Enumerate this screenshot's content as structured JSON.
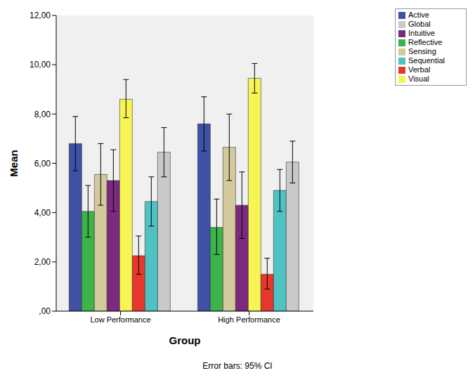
{
  "chart_data": {
    "type": "bar",
    "xlabel": "Group",
    "ylabel": "Mean",
    "annotation": "Error bars: 95% CI",
    "categories": [
      "Low Performance",
      "High Performance"
    ],
    "series": [
      {
        "name": "Active",
        "color": "#3f51a6",
        "values": [
          6.8,
          7.6
        ],
        "ci": [
          [
            5.7,
            7.9
          ],
          [
            6.5,
            8.7
          ]
        ]
      },
      {
        "name": "Reflective",
        "color": "#3cb44a",
        "values": [
          4.05,
          3.4
        ],
        "ci": [
          [
            3.0,
            5.1
          ],
          [
            2.3,
            4.55
          ]
        ]
      },
      {
        "name": "Sensing",
        "color": "#d3c99c",
        "values": [
          5.55,
          6.65
        ],
        "ci": [
          [
            4.3,
            6.8
          ],
          [
            5.3,
            8.0
          ]
        ]
      },
      {
        "name": "Intuitive",
        "color": "#7b2a7f",
        "values": [
          5.3,
          4.3
        ],
        "ci": [
          [
            4.05,
            6.55
          ],
          [
            2.95,
            5.65
          ]
        ]
      },
      {
        "name": "Visual",
        "color": "#f7f455",
        "values": [
          8.6,
          9.45
        ],
        "ci": [
          [
            7.85,
            9.4
          ],
          [
            8.85,
            10.05
          ]
        ]
      },
      {
        "name": "Verbal",
        "color": "#e8382e",
        "values": [
          2.25,
          1.5
        ],
        "ci": [
          [
            1.5,
            3.05
          ],
          [
            0.9,
            2.15
          ]
        ]
      },
      {
        "name": "Sequential",
        "color": "#4fc3c3",
        "values": [
          4.45,
          4.9
        ],
        "ci": [
          [
            3.45,
            5.45
          ],
          [
            4.05,
            5.75
          ]
        ]
      },
      {
        "name": "Global",
        "color": "#c9c9c9",
        "values": [
          6.45,
          6.05
        ],
        "ci": [
          [
            5.45,
            7.45
          ],
          [
            5.2,
            6.9
          ]
        ]
      }
    ],
    "ylim": [
      0,
      12
    ],
    "yticks": [
      {
        "value": 0,
        "label": ",00"
      },
      {
        "value": 2,
        "label": "2,00"
      },
      {
        "value": 4,
        "label": "4,00"
      },
      {
        "value": 6,
        "label": "6,00"
      },
      {
        "value": 8,
        "label": "8,00"
      },
      {
        "value": 10,
        "label": "10,00"
      },
      {
        "value": 12,
        "label": "12,00"
      }
    ],
    "grid": false,
    "legend": "top right"
  }
}
